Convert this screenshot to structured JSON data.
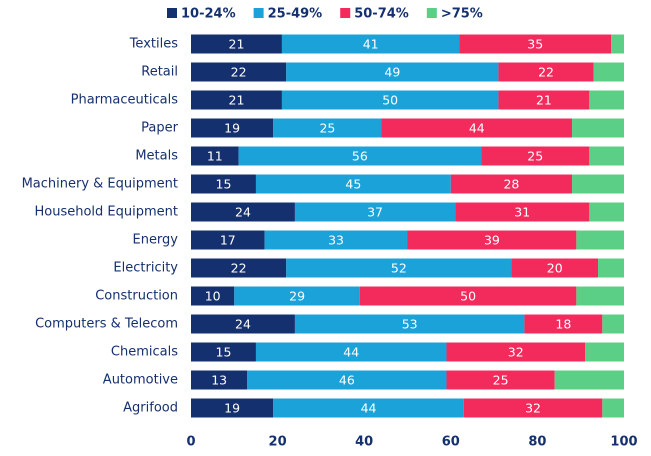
{
  "chart_data": {
    "type": "stacked_barh",
    "categories": [
      "Textiles",
      "Retail",
      "Pharmaceuticals",
      "Paper",
      "Metals",
      "Machinery & Equipment",
      "Household Equipment",
      "Energy",
      "Electricity",
      "Construction",
      "Computers & Telecom",
      "Chemicals",
      "Automotive",
      "Agrifood"
    ],
    "series": [
      {
        "name": "10-24%",
        "color": "#15306e",
        "show_labels": true,
        "values": [
          21,
          22,
          21,
          19,
          11,
          15,
          24,
          17,
          22,
          10,
          24,
          15,
          13,
          19
        ]
      },
      {
        "name": "25-49%",
        "color": "#1aa2d9",
        "show_labels": true,
        "values": [
          41,
          49,
          50,
          25,
          56,
          45,
          37,
          33,
          52,
          29,
          53,
          44,
          46,
          44
        ]
      },
      {
        "name": "50-74%",
        "color": "#f22b5c",
        "show_labels": true,
        "values": [
          35,
          22,
          21,
          44,
          25,
          28,
          31,
          39,
          20,
          50,
          18,
          32,
          25,
          32
        ]
      },
      {
        "name": ">75%",
        "color": "#5ccf86",
        "show_labels": false,
        "values": [
          3,
          7,
          8,
          12,
          8,
          12,
          8,
          11,
          6,
          11,
          5,
          9,
          16,
          5
        ]
      }
    ],
    "xlim": [
      0,
      100
    ],
    "xticks": [
      0,
      20,
      40,
      60,
      80,
      100
    ],
    "grid": false
  }
}
